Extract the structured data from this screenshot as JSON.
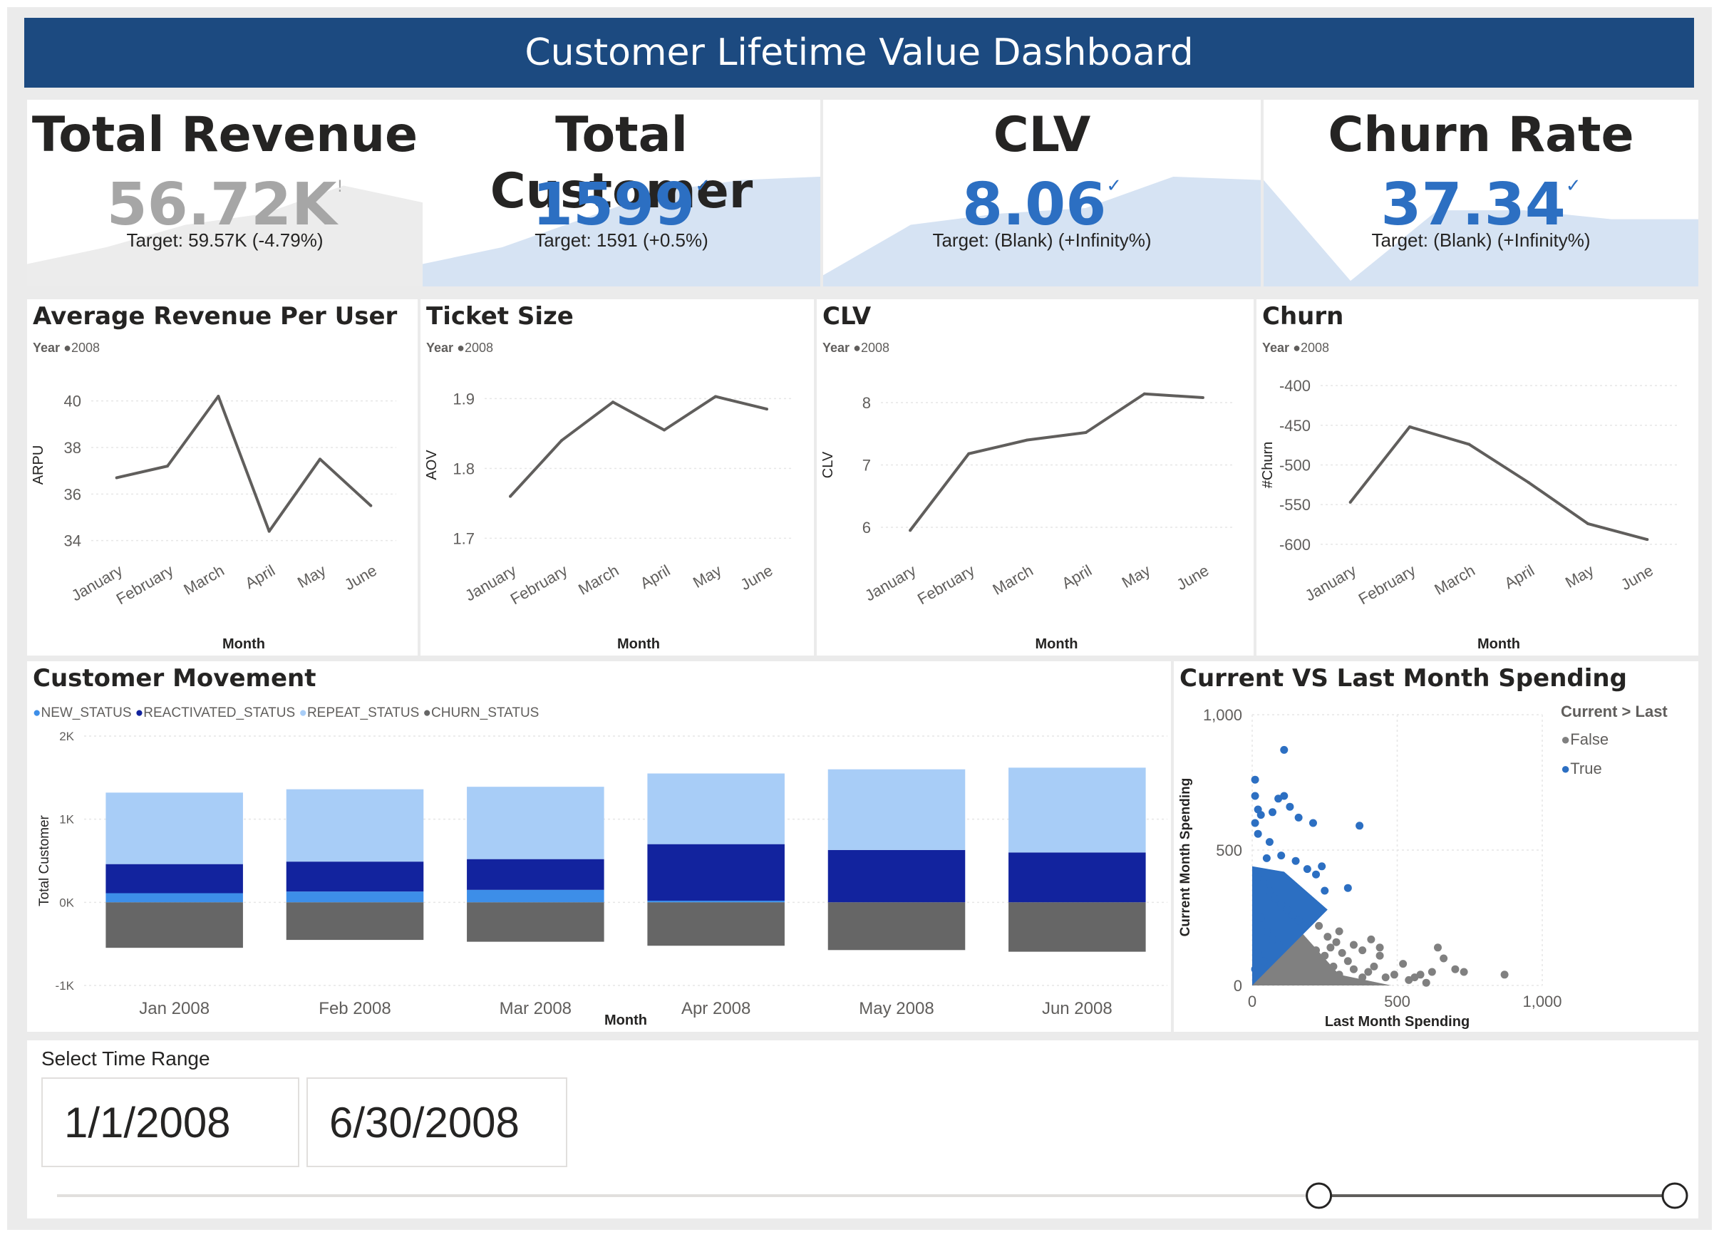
{
  "header": {
    "title": "Customer Lifetime Value Dashboard"
  },
  "colors": {
    "header_bg": "#1c4a80",
    "accent_blue": "#2c6fc2",
    "gray_value": "#a6a6a6",
    "spark_blue": "#d6e3f3",
    "spark_gray": "#ececec",
    "line_gray": "#605e5c",
    "new_status": "#3d8ee8",
    "reactivated_status": "#12239e",
    "repeat_status": "#a8cdf7",
    "churn_status": "#666666",
    "scatter_false": "#808080",
    "scatter_true": "#2c6fc2"
  },
  "kpis": [
    {
      "title": "Total Revenue",
      "value": "56.72K",
      "indicator": "!",
      "target": "Target: 59.57K (-4.79%)",
      "status": "below",
      "spark": [
        0.2,
        0.35,
        0.55,
        0.65,
        0.9,
        0.75
      ]
    },
    {
      "title": "Total Customer",
      "value": "1599",
      "indicator": "✓",
      "target": "Target: 1591 (+0.5%)",
      "status": "above",
      "spark": [
        0.2,
        0.35,
        0.6,
        0.85,
        0.95,
        0.98
      ]
    },
    {
      "title": "CLV",
      "value": "8.06",
      "indicator": "✓",
      "target": "Target: (Blank) (+Infinity%)",
      "status": "above",
      "spark": [
        0.1,
        0.55,
        0.65,
        0.7,
        0.98,
        0.95
      ]
    },
    {
      "title": "Churn Rate",
      "value": "37.34",
      "indicator": "✓",
      "target": "Target: (Blank) (+Infinity%)",
      "status": "above",
      "spark": [
        0.95,
        0.05,
        0.68,
        0.68,
        0.6,
        0.6
      ]
    }
  ],
  "line_charts": [
    {
      "title": "Average Revenue Per User",
      "legend_label": "Year",
      "legend_series": "2008",
      "ylabel": "ARPU",
      "xlabel": "Month",
      "categories": [
        "January",
        "February",
        "March",
        "April",
        "May",
        "June"
      ],
      "values": [
        36.7,
        37.2,
        40.2,
        34.4,
        37.5,
        35.5
      ],
      "ylim": [
        33.5,
        41
      ],
      "yticks": [
        "40",
        "38",
        "36",
        "34"
      ],
      "ytick_values": [
        40,
        38,
        36,
        34
      ]
    },
    {
      "title": "Ticket Size",
      "legend_label": "Year",
      "legend_series": "2008",
      "ylabel": "AOV",
      "xlabel": "Month",
      "categories": [
        "January",
        "February",
        "March",
        "April",
        "May",
        "June"
      ],
      "values": [
        1.76,
        1.84,
        1.895,
        1.855,
        1.903,
        1.885
      ],
      "ylim": [
        1.68,
        1.93
      ],
      "yticks": [
        "1.9",
        "1.8",
        "1.7"
      ],
      "ytick_values": [
        1.9,
        1.8,
        1.7
      ]
    },
    {
      "title": "CLV",
      "legend_label": "Year",
      "legend_series": "2008",
      "ylabel": "CLV",
      "xlabel": "Month",
      "categories": [
        "January",
        "February",
        "March",
        "April",
        "May",
        "June"
      ],
      "values": [
        5.95,
        7.18,
        7.4,
        7.52,
        8.14,
        8.08
      ],
      "ylim": [
        5.6,
        8.4
      ],
      "yticks": [
        "8",
        "7",
        "6"
      ],
      "ytick_values": [
        8,
        7,
        6
      ]
    },
    {
      "title": "Churn",
      "legend_label": "Year",
      "legend_series": "2008",
      "ylabel": "#Churn",
      "xlabel": "Month",
      "categories": [
        "January",
        "February",
        "March",
        "April",
        "May",
        "June"
      ],
      "values": [
        -547,
        -452,
        -474,
        -522,
        -574,
        -594
      ],
      "ylim": [
        -610,
        -390
      ],
      "yticks": [
        "-400",
        "-450",
        "-500",
        "-550",
        "-600"
      ],
      "ytick_values": [
        -400,
        -450,
        -500,
        -550,
        -600
      ]
    }
  ],
  "chart_data": [
    {
      "type": "bar",
      "title": "Customer Movement",
      "xlabel": "Month",
      "ylabel": "Total Customer",
      "categories": [
        "Jan 2008",
        "Feb 2008",
        "Mar 2008",
        "Apr 2008",
        "May 2008",
        "Jun 2008"
      ],
      "ylim": [
        -1000,
        2000
      ],
      "yticks": [
        "2K",
        "1K",
        "0K",
        "-1K"
      ],
      "ytick_values": [
        2000,
        1000,
        0,
        -1000
      ],
      "series": [
        {
          "name": "NEW_STATUS",
          "values": [
            110,
            130,
            150,
            20,
            0,
            0
          ]
        },
        {
          "name": "REACTIVATED_STATUS",
          "values": [
            350,
            360,
            370,
            680,
            630,
            600
          ]
        },
        {
          "name": "REPEAT_STATUS",
          "values": [
            860,
            870,
            870,
            850,
            970,
            1020
          ]
        },
        {
          "name": "CHURN_STATUS",
          "values": [
            -547,
            -452,
            -474,
            -522,
            -574,
            -594
          ]
        }
      ]
    },
    {
      "type": "scatter",
      "title": "Current VS Last Month Spending",
      "xlabel": "Last Month Spending",
      "ylabel": "Current Month Spending",
      "xlim": [
        0,
        1000
      ],
      "ylim": [
        0,
        1000
      ],
      "xticks": [
        "0",
        "500",
        "1,000"
      ],
      "yticks": [
        "1,000",
        "500",
        "0"
      ],
      "legend_title": "Current > Last",
      "series": [
        {
          "name": "False",
          "points": [
            [
              120,
              60
            ],
            [
              180,
              90
            ],
            [
              220,
              130
            ],
            [
              250,
              110
            ],
            [
              280,
              70
            ],
            [
              300,
              40
            ],
            [
              330,
              90
            ],
            [
              350,
              60
            ],
            [
              380,
              30
            ],
            [
              400,
              50
            ],
            [
              420,
              70
            ],
            [
              440,
              110
            ],
            [
              460,
              30
            ],
            [
              490,
              40
            ],
            [
              520,
              80
            ],
            [
              540,
              20
            ],
            [
              560,
              30
            ],
            [
              580,
              40
            ],
            [
              600,
              10
            ],
            [
              620,
              50
            ],
            [
              640,
              140
            ],
            [
              660,
              100
            ],
            [
              700,
              60
            ],
            [
              730,
              50
            ],
            [
              870,
              40
            ],
            [
              260,
              180
            ],
            [
              300,
              200
            ],
            [
              230,
              220
            ],
            [
              350,
              150
            ],
            [
              380,
              130
            ],
            [
              410,
              170
            ],
            [
              440,
              140
            ],
            [
              310,
              120
            ],
            [
              290,
              160
            ],
            [
              270,
              140
            ]
          ]
        },
        {
          "name": "True",
          "points": [
            [
              10,
              760
            ],
            [
              10,
              700
            ],
            [
              20,
              650
            ],
            [
              30,
              630
            ],
            [
              10,
              600
            ],
            [
              20,
              560
            ],
            [
              60,
              530
            ],
            [
              50,
              470
            ],
            [
              110,
              700
            ],
            [
              90,
              690
            ],
            [
              70,
              640
            ],
            [
              130,
              660
            ],
            [
              160,
              620
            ],
            [
              210,
              600
            ],
            [
              370,
              590
            ],
            [
              100,
              480
            ],
            [
              150,
              460
            ],
            [
              190,
              430
            ],
            [
              240,
              440
            ],
            [
              220,
              410
            ],
            [
              250,
              350
            ],
            [
              330,
              360
            ],
            [
              110,
              870
            ],
            [
              20,
              400
            ],
            [
              40,
              380
            ],
            [
              60,
              350
            ],
            [
              80,
              320
            ],
            [
              100,
              300
            ],
            [
              120,
              280
            ],
            [
              140,
              260
            ],
            [
              160,
              240
            ],
            [
              180,
              220
            ],
            [
              30,
              250
            ],
            [
              50,
              200
            ],
            [
              70,
              170
            ],
            [
              90,
              150
            ],
            [
              20,
              120
            ],
            [
              40,
              90
            ],
            [
              10,
              60
            ]
          ]
        }
      ]
    }
  ],
  "slicer": {
    "title": "Select Time Range",
    "start_date": "1/1/2008",
    "end_date": "6/30/2008",
    "range_start": 0.78,
    "range_end": 1.0
  }
}
